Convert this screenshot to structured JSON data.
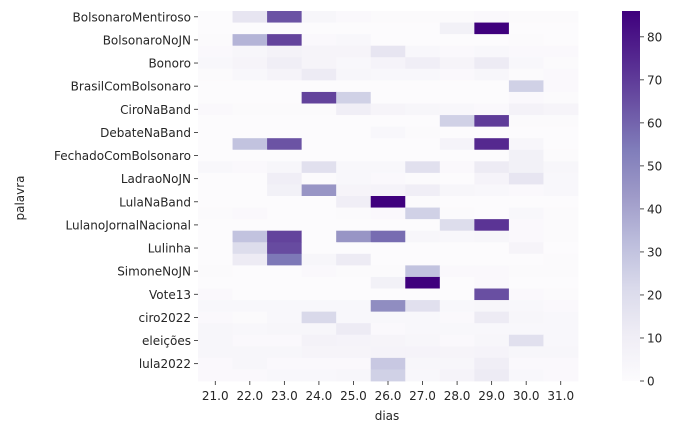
{
  "chart_data": {
    "type": "heatmap",
    "xlabel": "dias",
    "ylabel": "palavra",
    "colormap": "Purples",
    "colorbar": {
      "min": 0,
      "max": 86,
      "ticks": [
        0,
        10,
        20,
        30,
        40,
        50,
        60,
        70,
        80
      ],
      "tick_labels": [
        "0",
        "10",
        "20",
        "30",
        "40",
        "50",
        "60",
        "70",
        "80"
      ]
    },
    "x_tick_labels": [
      "21.0",
      "22.0",
      "23.0",
      "24.0",
      "25.0",
      "26.0",
      "27.0",
      "28.0",
      "29.0",
      "30.0",
      "31.0"
    ],
    "y_tick_labels": [
      "BolsonaroMentiroso",
      "BolsonaroNoJN",
      "Bonoro",
      "BrasilComBolsonaro",
      "CiroNaBand",
      "DebateNaBand",
      "FechadoComBolsonaro",
      "LadraoNoJN",
      "LulaNaBand",
      "LulanoJornalNacional",
      "Lulinha",
      "SimoneNoJN",
      "Vote13",
      "ciro2022",
      "eleições",
      "lula2022"
    ],
    "y_tick_rows": [
      0,
      2,
      4,
      6,
      8,
      10,
      12,
      14,
      16,
      18,
      20,
      22,
      24,
      26,
      28,
      30
    ],
    "values": [
      [
        0,
        15,
        64,
        4,
        2,
        1,
        1,
        1,
        2,
        1,
        1
      ],
      [
        0,
        0,
        0,
        0,
        0,
        0,
        0,
        8,
        86,
        0,
        0
      ],
      [
        1,
        35,
        68,
        2,
        3,
        0,
        0,
        0,
        0,
        1,
        0
      ],
      [
        2,
        4,
        7,
        5,
        5,
        15,
        3,
        2,
        3,
        2,
        2
      ],
      [
        3,
        5,
        10,
        5,
        3,
        6,
        10,
        5,
        12,
        3,
        1
      ],
      [
        1,
        3,
        6,
        12,
        4,
        3,
        3,
        2,
        4,
        1,
        2
      ],
      [
        0,
        0,
        0,
        0,
        0,
        0,
        0,
        0,
        0,
        25,
        2
      ],
      [
        0,
        0,
        0,
        68,
        25,
        0,
        0,
        0,
        0,
        2,
        1
      ],
      [
        2,
        1,
        1,
        1,
        10,
        5,
        4,
        3,
        2,
        7,
        5
      ],
      [
        0,
        0,
        0,
        0,
        0,
        0,
        0,
        25,
        70,
        1,
        1
      ],
      [
        0,
        0,
        0,
        0,
        0,
        3,
        1,
        0,
        0,
        0,
        0
      ],
      [
        0,
        30,
        64,
        0,
        0,
        0,
        0,
        6,
        75,
        4,
        0
      ],
      [
        0,
        0,
        0,
        0,
        0,
        0,
        0,
        0,
        0,
        8,
        1
      ],
      [
        3,
        2,
        4,
        18,
        3,
        3,
        18,
        2,
        12,
        8,
        4
      ],
      [
        0,
        0,
        10,
        1,
        3,
        2,
        1,
        0,
        6,
        15,
        3
      ],
      [
        0,
        0,
        8,
        45,
        5,
        6,
        10,
        4,
        3,
        2,
        3
      ],
      [
        0,
        0,
        0,
        0,
        10,
        86,
        1,
        0,
        0,
        0,
        0
      ],
      [
        1,
        2,
        0,
        0,
        1,
        2,
        25,
        1,
        0,
        3,
        1
      ],
      [
        0,
        0,
        0,
        0,
        0,
        0,
        0,
        20,
        72,
        2,
        1
      ],
      [
        0,
        30,
        68,
        0,
        45,
        58,
        4,
        3,
        4,
        2,
        1
      ],
      [
        0,
        20,
        66,
        0,
        0,
        0,
        0,
        0,
        0,
        5,
        0
      ],
      [
        0,
        12,
        55,
        4,
        12,
        0,
        0,
        0,
        0,
        0,
        1
      ],
      [
        1,
        0,
        0,
        2,
        1,
        1,
        30,
        2,
        2,
        1,
        1
      ],
      [
        0,
        0,
        0,
        0,
        0,
        8,
        86,
        0,
        2,
        0,
        0
      ],
      [
        2,
        0,
        0,
        0,
        0,
        0,
        0,
        0,
        65,
        2,
        1
      ],
      [
        3,
        3,
        3,
        3,
        3,
        48,
        18,
        3,
        4,
        3,
        2
      ],
      [
        2,
        1,
        3,
        22,
        3,
        3,
        3,
        2,
        12,
        4,
        3
      ],
      [
        4,
        3,
        4,
        4,
        12,
        2,
        3,
        3,
        3,
        3,
        3
      ],
      [
        4,
        2,
        2,
        7,
        6,
        5,
        4,
        2,
        4,
        18,
        3
      ],
      [
        4,
        4,
        4,
        5,
        5,
        6,
        6,
        5,
        6,
        4,
        4
      ],
      [
        2,
        4,
        2,
        2,
        2,
        28,
        4,
        4,
        10,
        2,
        2
      ],
      [
        2,
        2,
        3,
        3,
        4,
        25,
        3,
        6,
        12,
        3,
        2
      ]
    ]
  }
}
